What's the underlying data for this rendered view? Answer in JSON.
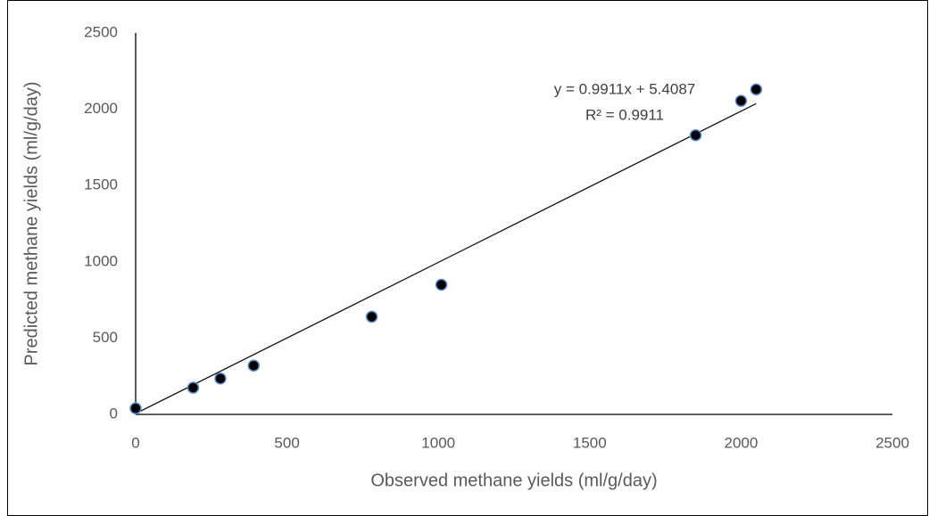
{
  "chart_data": {
    "type": "scatter",
    "x_label": "Observed methane yields (ml/g/day)",
    "y_label": "Predicted methane yields (ml/g/day)",
    "series": [
      {
        "color": "#000000",
        "edge_color": "#5b8bc9",
        "x": [
          0,
          190,
          280,
          390,
          780,
          1010,
          1850,
          2000,
          2050
        ],
        "values": [
          40,
          175,
          235,
          320,
          640,
          850,
          1830,
          2055,
          2130
        ]
      }
    ],
    "trendline": {
      "slope": 0.9911,
      "intercept": 5.4087,
      "equation": "y = 0.9911x + 5.4087",
      "r_squared": "R² = 0.9911"
    },
    "xlim": [
      0,
      2500
    ],
    "xticks": [
      0,
      500,
      1000,
      1500,
      2000,
      2500
    ],
    "ylim": [
      0,
      2500
    ],
    "yticks": [
      0,
      500,
      1000,
      1500,
      2000,
      2500
    ],
    "grid": false
  }
}
